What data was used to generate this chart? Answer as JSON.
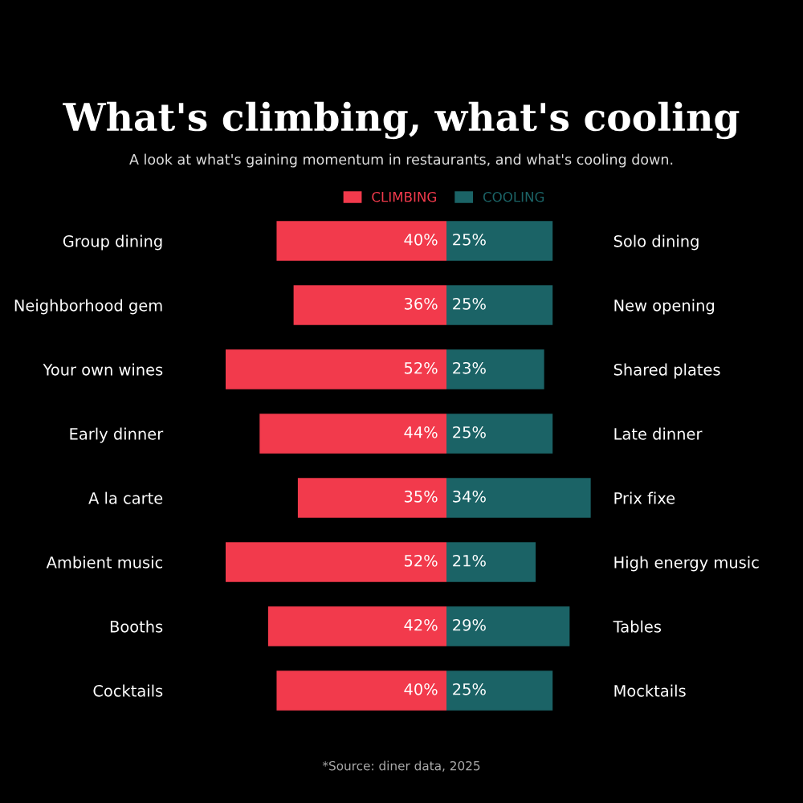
{
  "chart_data": [
    {
      "type": "bar",
      "orientation": "horizontal",
      "title": "What's climbing, what's cooling",
      "subtitle": "A look at what's gaining momentum in restaurants, and what's cooling down.",
      "categories": [
        "Group dining",
        "Neighborhood gem",
        "Your own wines",
        "Early dinner",
        "A la carte",
        "Ambient music",
        "Booths",
        "Cocktails"
      ],
      "series": [
        {
          "name": "CLIMBING",
          "color": "#f23a4c",
          "values": [
            40,
            36,
            52,
            44,
            35,
            52,
            42,
            40
          ],
          "value_labels": [
            "40%",
            "36%",
            "52%",
            "44%",
            "35%",
            "52%",
            "42%",
            "40%"
          ]
        }
      ],
      "legend": "top right",
      "annotations": [
        "*Source: diner data, 2025"
      ]
    },
    {
      "type": "bar",
      "orientation": "horizontal",
      "categories": [
        "Solo dining",
        "New opening",
        "Shared plates",
        "Late dinner",
        "Prix fixe",
        "High energy music",
        "Tables",
        "Mocktails"
      ],
      "series": [
        {
          "name": "COOLING",
          "color": "#1b6366",
          "values": [
            25,
            25,
            23,
            25,
            34,
            21,
            29,
            25
          ],
          "value_labels": [
            "25%",
            "25%",
            "23%",
            "25%",
            "34%",
            "21%",
            "29%",
            "25%"
          ]
        }
      ],
      "legend": "top left"
    }
  ]
}
